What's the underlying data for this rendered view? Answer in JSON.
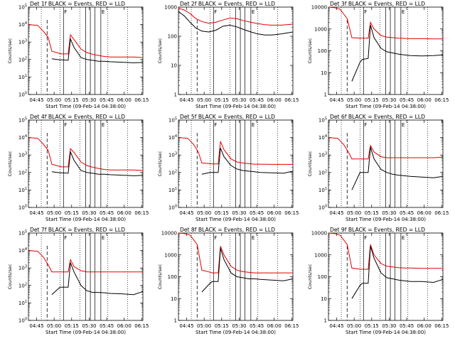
{
  "figure": {
    "xlabel_text": "Start Time (09-Feb-14 04:38:00)",
    "ylabel_text": "Counts/sec",
    "ylabel_variant_text": "Counts/sec",
    "x_tick_labels": [
      "04:45",
      "05:00",
      "05:15",
      "05:30",
      "05:45",
      "06:00",
      "06:15"
    ],
    "marker_labels": {
      "F": "F",
      "E": "E"
    },
    "series_colors": {
      "events": "#000000",
      "lld": "#e00000"
    }
  },
  "chart_data": [
    {
      "type": "line",
      "title": "Det 1f BLACK = Events, RED = LLD",
      "xlabel": "Start Time (09-Feb-14 04:38:00)",
      "ylabel": "Counts/sec",
      "ylim": [
        1,
        100000
      ],
      "ytick_labels": [
        "10^0",
        "10^1",
        "10^2",
        "10^3",
        "10^4",
        "10^5"
      ],
      "x_minutes": [
        0,
        8,
        13,
        17,
        20,
        27,
        29,
        34,
        36,
        39,
        45,
        50,
        55,
        60,
        65,
        70,
        80,
        90,
        98
      ],
      "series": [
        {
          "values": [
            10000.0,
            9000.0,
            4000.0,
            1800.0,
            300.0,
            220.0,
            210.0,
            210.0,
            2600.0,
            1400.0,
            400.0,
            250.0,
            200.0,
            170.0,
            150.0,
            140.0,
            140.0,
            140.0,
            130.0
          ]
        },
        {
          "values": [
            null,
            null,
            null,
            null,
            110.0,
            95.0,
            95.0,
            90.0,
            1500.0,
            500.0,
            130.0,
            100.0,
            90.0,
            80.0,
            80.0,
            75.0,
            70.0,
            65.0,
            68.0
          ]
        }
      ]
    },
    {
      "type": "line",
      "title": "Det 2f BLACK = Events, RED = LLD",
      "xlabel": "Start Time (09-Feb-14 04:38:00)",
      "ylabel": "Counts/sec",
      "ylim": [
        1,
        1000
      ],
      "ytick_labels": [
        "1",
        "10",
        "100",
        "1000"
      ],
      "x_minutes": [
        0,
        5,
        10,
        15,
        20,
        26,
        32,
        38,
        44,
        50,
        56,
        62,
        68,
        74,
        80,
        88,
        98
      ],
      "series": [
        {
          "values": [
            900,
            800,
            600,
            400,
            320,
            280,
            300,
            360,
            420,
            400,
            340,
            300,
            270,
            250,
            240,
            240,
            260
          ]
        },
        {
          "values": [
            700,
            500,
            300,
            190,
            150,
            140,
            160,
            220,
            240,
            210,
            170,
            140,
            120,
            110,
            110,
            120,
            140
          ]
        }
      ]
    },
    {
      "type": "line",
      "title": "Det 3f BLACK = Events, RED = LLD",
      "xlabel": "Start Time (09-Feb-14 04:38:00)",
      "ylabel": "Counts/sec",
      "ylim": [
        1,
        10000
      ],
      "ytick_labels": [
        "1",
        "10",
        "100",
        "1000",
        "10000"
      ],
      "x_minutes": [
        0,
        5,
        10,
        16,
        20,
        27,
        29,
        34,
        36,
        39,
        45,
        50,
        55,
        60,
        65,
        70,
        80,
        90,
        98
      ],
      "series": [
        {
          "values": [
            10000,
            9500,
            8000,
            3000,
            400,
            380,
            380,
            380,
            2000,
            1000,
            500,
            420,
            400,
            380,
            370,
            360,
            360,
            350,
            350
          ]
        },
        {
          "values": [
            null,
            null,
            null,
            null,
            4,
            30,
            40,
            45,
            1500,
            400,
            130,
            90,
            80,
            70,
            65,
            60,
            58,
            60,
            65
          ]
        }
      ]
    },
    {
      "type": "line",
      "title": "Det 4f BLACK = Events, RED = LLD",
      "xlabel": "Start Time (09-Feb-14 04:38:00)",
      "ylabel": "Counts/sec",
      "ylim": [
        1,
        100000
      ],
      "ytick_labels": [
        "10^0",
        "10^1",
        "10^2",
        "10^3",
        "10^4",
        "10^5"
      ],
      "x_minutes": [
        0,
        8,
        13,
        17,
        20,
        27,
        29,
        34,
        36,
        39,
        45,
        50,
        55,
        60,
        65,
        70,
        80,
        90,
        98
      ],
      "series": [
        {
          "values": [
            10000.0,
            9000.0,
            4000.0,
            1800.0,
            300.0,
            220.0,
            210.0,
            210.0,
            2300.0,
            1400.0,
            400.0,
            250.0,
            200.0,
            170.0,
            150.0,
            140.0,
            140.0,
            140.0,
            130.0
          ]
        },
        {
          "values": [
            null,
            null,
            null,
            null,
            110.0,
            95.0,
            95.0,
            90.0,
            1500.0,
            500.0,
            130.0,
            100.0,
            90.0,
            80.0,
            80.0,
            75.0,
            70.0,
            65.0,
            68.0
          ]
        }
      ]
    },
    {
      "type": "line",
      "title": "Det 5f BLACK = Events, RED = LLD",
      "xlabel": "Start Time (09-Feb-14 04:38:00)",
      "ylabel": "Counts/sec",
      "ylim": [
        1,
        100000
      ],
      "ytick_labels": [
        "10^0",
        "10^1",
        "10^2",
        "10^3",
        "10^4",
        "10^5"
      ],
      "x_minutes": [
        0,
        8,
        13,
        17,
        20,
        27,
        29,
        34,
        36,
        39,
        45,
        50,
        55,
        60,
        65,
        70,
        80,
        90,
        98
      ],
      "series": [
        {
          "values": [
            10000.0,
            9000.0,
            4000.0,
            1500.0,
            350.0,
            320.0,
            310.0,
            310.0,
            6000.0,
            2000.0,
            600.0,
            400.0,
            350.0,
            320.0,
            300.0,
            300.0,
            290.0,
            290.0,
            290.0
          ]
        },
        {
          "values": [
            null,
            null,
            null,
            null,
            80.0,
            100.0,
            100.0,
            100.0,
            2500.0,
            800.0,
            250.0,
            160.0,
            130.0,
            120.0,
            110.0,
            100.0,
            95.0,
            90.0,
            120.0
          ]
        }
      ]
    },
    {
      "type": "line",
      "title": "Det 6f BLACK = Events, RED = LLD",
      "xlabel": "Start Time (09-Feb-14 04:38:00)",
      "ylabel": "Counts/sec",
      "ylim": [
        1,
        100000
      ],
      "ytick_labels": [
        "10^0",
        "10^1",
        "10^2",
        "10^3",
        "10^4",
        "10^5"
      ],
      "x_minutes": [
        0,
        8,
        13,
        17,
        20,
        27,
        29,
        34,
        36,
        39,
        45,
        50,
        55,
        60,
        65,
        70,
        80,
        90,
        98
      ],
      "series": [
        {
          "values": [
            10000.0,
            9000.0,
            4000.0,
            1500.0,
            600.0,
            600.0,
            600.0,
            600.0,
            3500.0,
            1500.0,
            800.0,
            700.0,
            700.0,
            700.0,
            700.0,
            700.0,
            700.0,
            700.0,
            750.0
          ]
        },
        {
          "values": [
            null,
            null,
            null,
            null,
            10.0,
            100.0,
            100.0,
            100.0,
            2800.0,
            600.0,
            150.0,
            100.0,
            80.0,
            70.0,
            65.0,
            60.0,
            55.0,
            50.0,
            60.0
          ]
        }
      ]
    },
    {
      "type": "line",
      "title": "Det 7f BLACK = Events, RED = LLD",
      "xlabel": "Start Time (09-Feb-14 04:38:00)",
      "ylabel": "Counts/sec",
      "ylim": [
        1,
        100000
      ],
      "ytick_labels": [
        "10^0",
        "10^1",
        "10^2",
        "10^3",
        "10^4",
        "10^5"
      ],
      "x_minutes": [
        0,
        8,
        13,
        17,
        20,
        27,
        29,
        34,
        36,
        39,
        45,
        50,
        55,
        60,
        65,
        70,
        80,
        90,
        98
      ],
      "series": [
        {
          "values": [
            10000.0,
            9000.0,
            4000.0,
            1500.0,
            600.0,
            600.0,
            600.0,
            600.0,
            3000.0,
            1200.0,
            700.0,
            600.0,
            600.0,
            600.0,
            600.0,
            600.0,
            600.0,
            600.0,
            600.0
          ]
        },
        {
          "values": [
            null,
            null,
            null,
            null,
            30.0,
            80.0,
            80.0,
            80.0,
            2000.0,
            600.0,
            100.0,
            50.0,
            40.0,
            40.0,
            38.0,
            35.0,
            33.0,
            30.0,
            45.0
          ]
        }
      ]
    },
    {
      "type": "line",
      "title": "Det 8f BLACK = Events, RED = LLD",
      "xlabel": "Start Time (09-Feb-14 04:38:00)",
      "ylabel": "Counts/sec",
      "ylim": [
        1,
        10000
      ],
      "ytick_labels": [
        "1",
        "10",
        "100",
        "1000",
        "10000"
      ],
      "x_minutes": [
        0,
        5,
        10,
        16,
        20,
        27,
        29,
        34,
        36,
        39,
        45,
        50,
        55,
        60,
        65,
        70,
        80,
        90,
        98
      ],
      "series": [
        {
          "values": [
            10000,
            9500,
            8000,
            3000,
            200,
            160,
            150,
            150,
            2500,
            1000,
            300,
            200,
            170,
            160,
            150,
            150,
            150,
            150,
            150
          ]
        },
        {
          "values": [
            null,
            null,
            null,
            null,
            20,
            50,
            60,
            60,
            2000,
            600,
            150,
            100,
            90,
            80,
            80,
            75,
            70,
            65,
            80
          ]
        }
      ]
    },
    {
      "type": "line",
      "title": "Det 9f BLACK = Events, RED = LLD",
      "xlabel": "Start Time (09-Feb-14 04:38:00)",
      "ylabel": "Counts/sec",
      "ylim": [
        1,
        10000
      ],
      "ytick_labels": [
        "1",
        "10",
        "100",
        "1000",
        "10000"
      ],
      "x_minutes": [
        0,
        5,
        10,
        16,
        20,
        27,
        29,
        34,
        36,
        39,
        45,
        50,
        55,
        60,
        65,
        70,
        80,
        90,
        98
      ],
      "series": [
        {
          "values": [
            10000,
            9500,
            8000,
            3000,
            250,
            220,
            220,
            220,
            3000,
            1000,
            400,
            300,
            280,
            260,
            250,
            250,
            240,
            240,
            240
          ]
        },
        {
          "values": [
            null,
            null,
            null,
            null,
            10,
            40,
            50,
            50,
            2500,
            700,
            150,
            90,
            80,
            70,
            65,
            60,
            60,
            55,
            75
          ]
        }
      ]
    }
  ]
}
